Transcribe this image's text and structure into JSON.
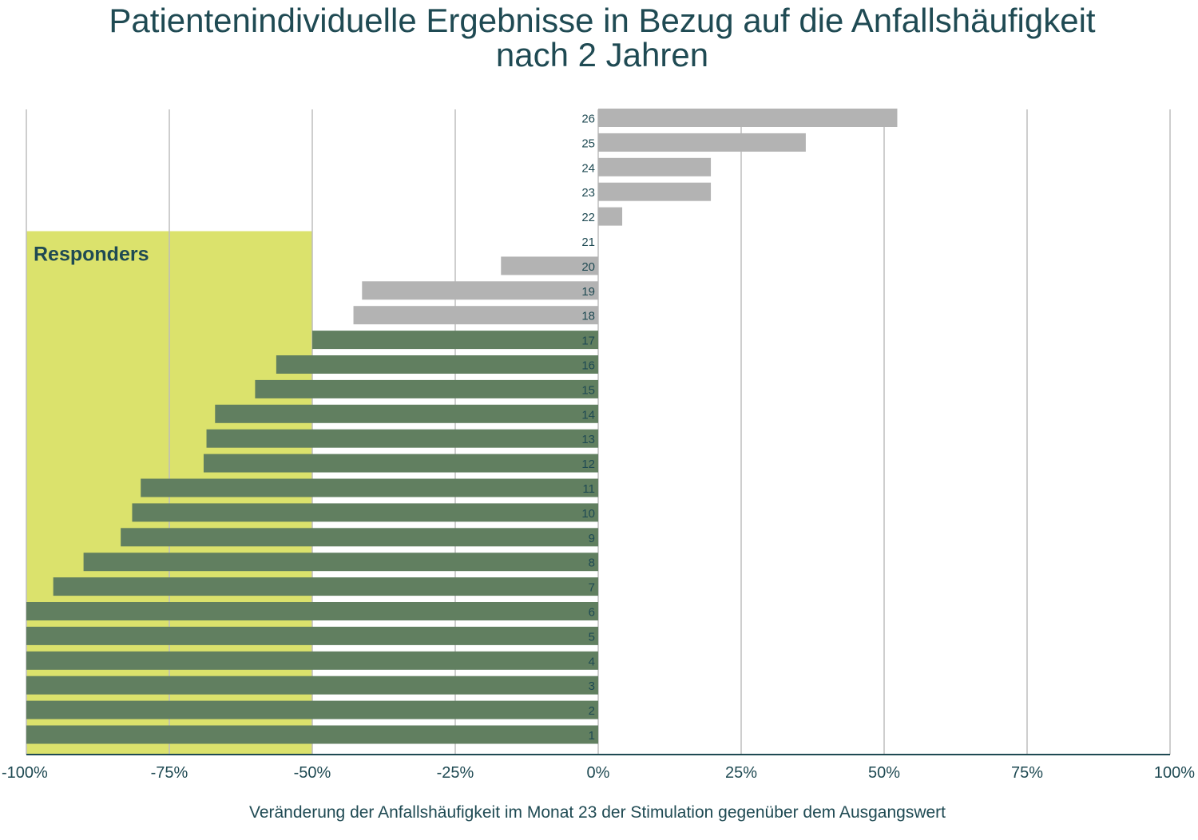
{
  "chart_data": {
    "type": "bar",
    "orientation": "horizontal",
    "title_lines": [
      "Patientenindividuelle Ergebnisse in Bezug auf die Anfallshäufigkeit",
      "nach 2 Jahren"
    ],
    "xlabel": "Veränderung der Anfallshäufigkeit im Monat 23 der Stimulation gegenüber dem Ausgangswert",
    "ylabel": "",
    "xlim": [
      -100,
      100
    ],
    "x_ticks": [
      -100,
      -75,
      -50,
      -25,
      0,
      25,
      50,
      75,
      100
    ],
    "x_tick_labels": [
      "-100%",
      "-75%",
      "-50%",
      "-25%",
      "0%",
      "25%",
      "50%",
      "75%",
      "100%"
    ],
    "grid": "vertical",
    "categories": [
      "1",
      "2",
      "3",
      "4",
      "5",
      "6",
      "7",
      "8",
      "9",
      "10",
      "11",
      "12",
      "13",
      "14",
      "15",
      "16",
      "17",
      "18",
      "19",
      "20",
      "21",
      "22",
      "23",
      "24",
      "25",
      "26"
    ],
    "values": [
      -100,
      -100,
      -100,
      -100,
      -100,
      -100,
      -95.3,
      -90,
      -83.5,
      -81.5,
      -80,
      -69,
      -68.5,
      -67,
      -60,
      -56.3,
      -50,
      -42.8,
      -41.3,
      -17,
      0,
      4.2,
      19.7,
      19.7,
      36.3,
      52.3
    ],
    "responder_threshold": -50,
    "responder_region": {
      "label": "Responders",
      "from": -100,
      "to": -50,
      "top_category": "21",
      "color": "#dbe26c"
    },
    "colors": {
      "responder_bar": "#617f60",
      "non_responder_bar": "#b3b3b3",
      "text": "#1f4a53",
      "grid": "#bdbdbd",
      "axis": "#1f4a53"
    }
  }
}
